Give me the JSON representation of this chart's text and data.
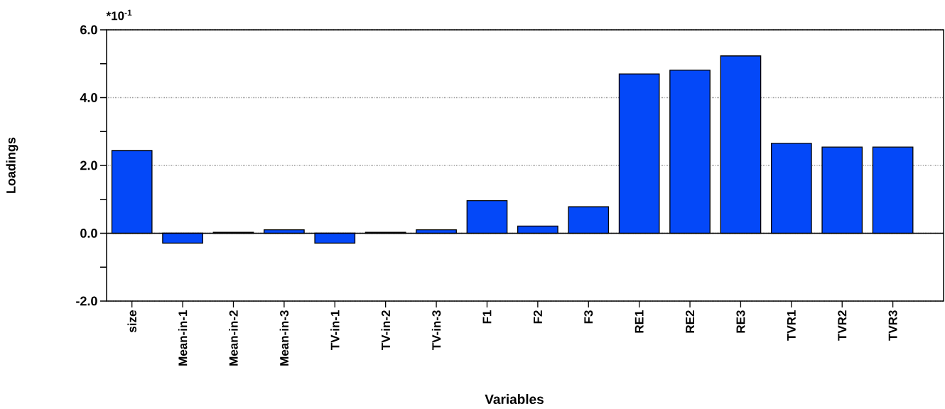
{
  "chart_data": {
    "type": "bar",
    "xlabel": "Variables",
    "ylabel": "Loadings",
    "annotations": [
      "*10$^{-1}$"
    ],
    "categories": [
      "size",
      "Mean-in-1",
      "Mean-in-2",
      "Mean-in-3",
      "TV-in-1",
      "TV-in-2",
      "TV-in-3",
      "F1",
      "F2",
      "F3",
      "RE1",
      "RE2",
      "RE3",
      "TVR1",
      "TVR2",
      "TVR3"
    ],
    "values": [
      2.44,
      -0.29,
      0.03,
      0.1,
      -0.29,
      0.03,
      0.1,
      0.96,
      0.21,
      0.78,
      4.7,
      4.81,
      5.23,
      2.65,
      2.54,
      2.54
    ],
    "color": "#0448f8",
    "ylim": [
      -2,
      6
    ],
    "yticks": [
      {
        "value": -2,
        "label": "-2.0"
      },
      {
        "value": -1,
        "label": null
      },
      {
        "value": 0,
        "label": "0.0"
      },
      {
        "value": 1,
        "label": null
      },
      {
        "value": 2,
        "label": "2.0"
      },
      {
        "value": 3,
        "label": null
      },
      {
        "value": 4,
        "label": "4.0"
      },
      {
        "value": 5,
        "label": null
      },
      {
        "value": 6,
        "label": "6.0"
      }
    ],
    "grid": "y",
    "ref_lines": [
      {
        "axis": "y",
        "value": 0
      }
    ]
  }
}
